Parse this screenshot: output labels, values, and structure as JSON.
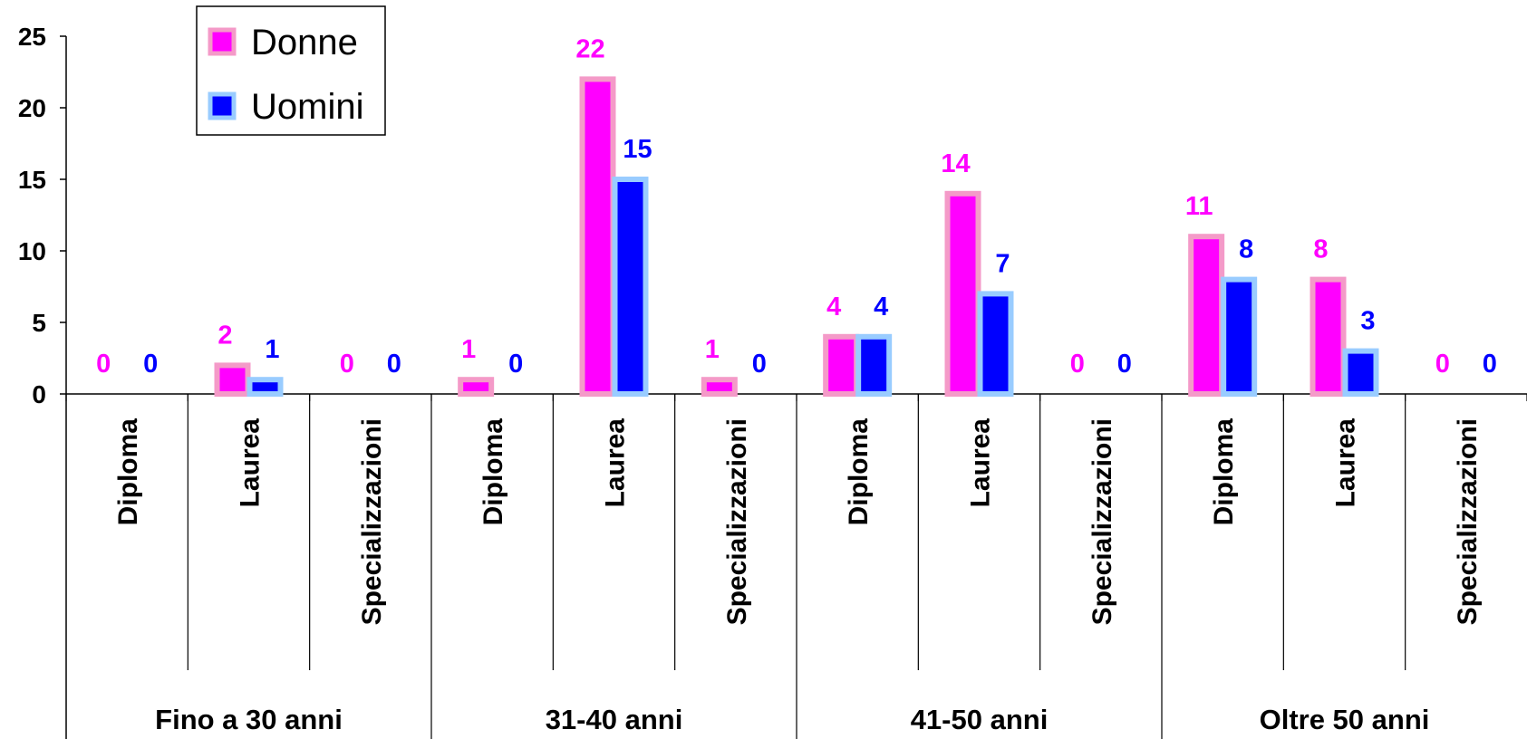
{
  "chart_data": {
    "type": "bar",
    "groups": [
      {
        "label": "Fino a 30 anni",
        "categories": [
          "Diploma",
          "Laurea",
          "Specializzazioni"
        ]
      },
      {
        "label": "31-40 anni",
        "categories": [
          "Diploma",
          "Laurea",
          "Specializzazioni"
        ]
      },
      {
        "label": "41-50 anni",
        "categories": [
          "Diploma",
          "Laurea",
          "Specializzazioni"
        ]
      },
      {
        "label": "Oltre 50 anni",
        "categories": [
          "Diploma",
          "Laurea",
          "Specializzazioni"
        ]
      }
    ],
    "series": [
      {
        "name": "Donne",
        "color": "#FF00FF",
        "border_color": "#F49AC8",
        "label_color": "#FF00FF",
        "values": [
          0,
          2,
          0,
          1,
          22,
          1,
          4,
          14,
          0,
          11,
          8,
          0
        ]
      },
      {
        "name": "Uomini",
        "color": "#0000FF",
        "border_color": "#99CCFF",
        "label_color": "#0000FF",
        "values": [
          0,
          1,
          0,
          0,
          15,
          0,
          4,
          7,
          0,
          8,
          3,
          0
        ]
      }
    ],
    "y_ticks": [
      "0",
      "5",
      "10",
      "15",
      "20",
      "25"
    ],
    "ylim": [
      0,
      25
    ],
    "legend_position": "top-left",
    "grid": false
  }
}
